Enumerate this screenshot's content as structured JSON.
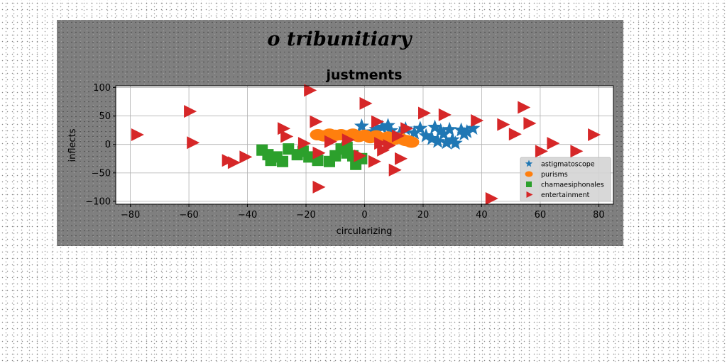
{
  "figure_title": "o tribunitiary",
  "chart_data": {
    "type": "scatter",
    "title": "justments",
    "xlabel": "circularizing",
    "ylabel": "inflects",
    "xlim": [
      -85,
      85
    ],
    "ylim": [
      -105,
      103
    ],
    "xticks": [
      -80,
      -60,
      -40,
      -20,
      0,
      20,
      40,
      60,
      80
    ],
    "yticks": [
      -100,
      -50,
      0,
      50,
      100
    ],
    "grid": true,
    "legend_position": "lower-right",
    "series": [
      {
        "name": "astigmatoscope",
        "marker": "star",
        "color": "#1f77b4",
        "points": [
          [
            -1,
            32
          ],
          [
            3,
            22
          ],
          [
            6,
            30
          ],
          [
            9,
            24
          ],
          [
            12,
            18
          ],
          [
            14,
            27
          ],
          [
            19,
            28
          ],
          [
            21,
            15
          ],
          [
            23,
            10
          ],
          [
            24,
            30
          ],
          [
            25,
            5
          ],
          [
            27,
            18
          ],
          [
            28,
            3
          ],
          [
            29,
            26
          ],
          [
            30,
            8
          ],
          [
            31,
            2
          ],
          [
            33,
            25
          ],
          [
            34,
            18
          ],
          [
            35,
            22
          ],
          [
            37,
            28
          ],
          [
            4,
            26
          ],
          [
            8,
            33
          ],
          [
            17,
            20
          ],
          [
            26,
            24
          ]
        ]
      },
      {
        "name": "purisms",
        "marker": "ellipse",
        "color": "#ff7f0e",
        "points": [
          [
            -16,
            17
          ],
          [
            -14,
            15
          ],
          [
            -12,
            18
          ],
          [
            -10,
            16
          ],
          [
            -8,
            17
          ],
          [
            -6,
            15
          ],
          [
            -4,
            18
          ],
          [
            -2,
            14
          ],
          [
            0,
            16
          ],
          [
            2,
            12
          ],
          [
            4,
            15
          ],
          [
            6,
            10
          ],
          [
            8,
            13
          ],
          [
            10,
            9
          ],
          [
            12,
            11
          ],
          [
            14,
            7
          ],
          [
            15,
            6
          ],
          [
            16,
            4
          ]
        ]
      },
      {
        "name": "chamaesiphonales",
        "marker": "square",
        "color": "#2ca02c",
        "points": [
          [
            -35,
            -10
          ],
          [
            -33,
            -18
          ],
          [
            -32,
            -28
          ],
          [
            -30,
            -22
          ],
          [
            -28,
            -30
          ],
          [
            -26,
            -8
          ],
          [
            -23,
            -18
          ],
          [
            -21,
            -12
          ],
          [
            -19,
            -22
          ],
          [
            -16,
            -28
          ],
          [
            -12,
            -30
          ],
          [
            -8,
            -8
          ],
          [
            -6,
            -15
          ],
          [
            -4,
            -20
          ],
          [
            -3,
            -35
          ],
          [
            -1,
            -25
          ],
          [
            -6,
            -5
          ],
          [
            -10,
            -20
          ]
        ]
      },
      {
        "name": "entertainment",
        "marker": "triangle-right",
        "color": "#d62728",
        "points": [
          [
            -78,
            17
          ],
          [
            -60,
            58
          ],
          [
            -59,
            3
          ],
          [
            -47,
            -28
          ],
          [
            -45,
            -32
          ],
          [
            -41,
            -22
          ],
          [
            -28,
            28
          ],
          [
            -27,
            14
          ],
          [
            -21,
            2
          ],
          [
            -19,
            95
          ],
          [
            -17,
            40
          ],
          [
            -16,
            -15
          ],
          [
            -16,
            -75
          ],
          [
            -6,
            8
          ],
          [
            0,
            72
          ],
          [
            3,
            -30
          ],
          [
            4,
            40
          ],
          [
            5,
            2
          ],
          [
            8,
            -2
          ],
          [
            10,
            -45
          ],
          [
            11,
            15
          ],
          [
            12,
            -25
          ],
          [
            14,
            28
          ],
          [
            20,
            55
          ],
          [
            27,
            52
          ],
          [
            38,
            42
          ],
          [
            43,
            -95
          ],
          [
            47,
            35
          ],
          [
            51,
            18
          ],
          [
            54,
            65
          ],
          [
            56,
            37
          ],
          [
            60,
            -12
          ],
          [
            64,
            2
          ],
          [
            72,
            -12
          ],
          [
            78,
            17
          ],
          [
            -2,
            -20
          ],
          [
            6,
            -10
          ],
          [
            -12,
            5
          ]
        ]
      }
    ]
  }
}
